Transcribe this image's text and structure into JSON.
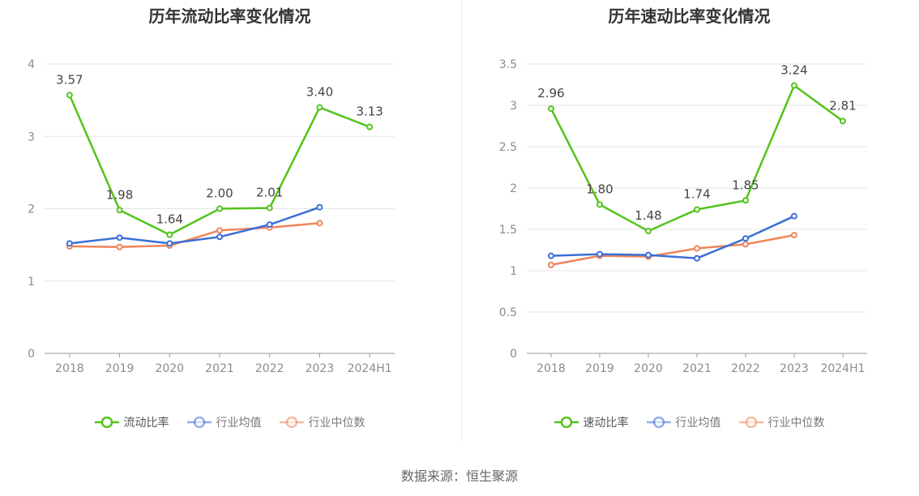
{
  "source_text": "数据来源：恒生聚源",
  "colors": {
    "green": "#52c41a",
    "blue": "#3b6fd6",
    "orange": "#f0845a",
    "grid": "#e3e5ea",
    "axis": "#999999",
    "tick": "#8c8c8c"
  },
  "chart_data": [
    {
      "type": "line",
      "title": "历年流动比率变化情况",
      "categories": [
        "2018",
        "2019",
        "2020",
        "2021",
        "2022",
        "2023",
        "2024H1"
      ],
      "ylim": [
        0,
        4
      ],
      "yticks": [
        0,
        1,
        2,
        3,
        4
      ],
      "ytick_labels": [
        "0",
        "1",
        "2",
        "3",
        "4"
      ],
      "grid": true,
      "legend_position": "bottom",
      "series": [
        {
          "name": "流动比率",
          "color": "#52c41a",
          "values": [
            3.57,
            1.98,
            1.64,
            2.0,
            2.01,
            3.4,
            3.13
          ],
          "labels": [
            "3.57",
            "1.98",
            "1.64",
            "2.00",
            "2.01",
            "3.40",
            "3.13"
          ]
        },
        {
          "name": "行业均值",
          "color": "#3b6fd6",
          "values": [
            1.52,
            1.6,
            1.52,
            1.61,
            1.78,
            2.02,
            null
          ]
        },
        {
          "name": "行业中位数",
          "color": "#f0845a",
          "values": [
            1.48,
            1.47,
            1.49,
            1.7,
            1.74,
            1.8,
            null
          ]
        }
      ]
    },
    {
      "type": "line",
      "title": "历年速动比率变化情况",
      "categories": [
        "2018",
        "2019",
        "2020",
        "2021",
        "2022",
        "2023",
        "2024H1"
      ],
      "ylim": [
        0,
        3.5
      ],
      "yticks": [
        0,
        0.5,
        1,
        1.5,
        2,
        2.5,
        3,
        3.5
      ],
      "ytick_labels": [
        "0",
        "0.5",
        "1",
        "1.5",
        "2",
        "2.5",
        "3",
        "3.5"
      ],
      "grid": true,
      "legend_position": "bottom",
      "series": [
        {
          "name": "速动比率",
          "color": "#52c41a",
          "values": [
            2.96,
            1.8,
            1.48,
            1.74,
            1.85,
            3.24,
            2.81
          ],
          "labels": [
            "2.96",
            "1.80",
            "1.48",
            "1.74",
            "1.85",
            "3.24",
            "2.81"
          ]
        },
        {
          "name": "行业均值",
          "color": "#3b6fd6",
          "values": [
            1.18,
            1.2,
            1.19,
            1.15,
            1.39,
            1.66,
            null
          ]
        },
        {
          "name": "行业中位数",
          "color": "#f0845a",
          "values": [
            1.07,
            1.18,
            1.17,
            1.27,
            1.32,
            1.43,
            null
          ]
        }
      ]
    }
  ]
}
